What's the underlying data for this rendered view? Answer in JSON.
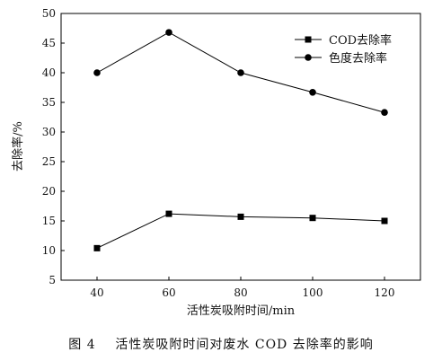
{
  "chart_data": {
    "type": "line",
    "x": [
      40,
      60,
      80,
      100,
      120
    ],
    "xlabel": "活性炭吸附时间/min",
    "ylabel": "去除率/%",
    "xlim": [
      30,
      130
    ],
    "ylim": [
      5,
      50
    ],
    "xticks": [
      "40",
      "60",
      "80",
      "100",
      "120"
    ],
    "yticks": [
      "5",
      "10",
      "15",
      "20",
      "25",
      "30",
      "35",
      "40",
      "45",
      "50"
    ],
    "legend_position": "top-right",
    "grid": false,
    "series": [
      {
        "name": "COD去除率",
        "marker": "square",
        "color": "#000000",
        "values": [
          10.4,
          16.2,
          15.7,
          15.5,
          15.0
        ]
      },
      {
        "name": "色度去除率",
        "marker": "circle",
        "color": "#000000",
        "values": [
          40.0,
          46.8,
          40.0,
          36.7,
          33.3
        ]
      }
    ]
  },
  "caption": {
    "label": "图 4",
    "text": "活性炭吸附时间对废水 COD 去除率的影响"
  }
}
